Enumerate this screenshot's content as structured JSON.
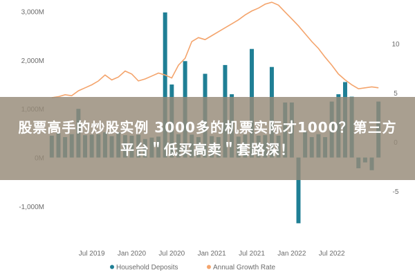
{
  "chart_data": {
    "type": "bar",
    "left_axis": {
      "ticks": [
        "3,000M",
        "2,000M",
        "1,000M",
        "0M",
        "-1,000M"
      ],
      "tick_values": [
        3000,
        2000,
        1000,
        0,
        -1000
      ],
      "ylim": [
        -1600,
        3150
      ]
    },
    "right_axis": {
      "ticks": [
        "10",
        "5",
        "0",
        "-5"
      ],
      "tick_values": [
        10,
        5,
        0,
        -5
      ],
      "ylim": [
        -9.5,
        14
      ]
    },
    "x_ticks": [
      {
        "label": "Jul 2019",
        "index": 6
      },
      {
        "label": "Jan 2020",
        "index": 12
      },
      {
        "label": "Jul 2020",
        "index": 18
      },
      {
        "label": "Jan 2021",
        "index": 24
      },
      {
        "label": "Jul 2021",
        "index": 30
      },
      {
        "label": "Jan 2022",
        "index": 36
      },
      {
        "label": "Jul 2022",
        "index": 42
      }
    ],
    "series": [
      {
        "name": "Household Deposits",
        "type": "bar",
        "axis": "left",
        "color": "#1f7f95",
        "values": [
          450,
          500,
          420,
          480,
          1000,
          460,
          470,
          480,
          520,
          440,
          520,
          460,
          450,
          470,
          380,
          410,
          430,
          2980,
          1500,
          480,
          1980,
          470,
          420,
          1720,
          440,
          420,
          1900,
          1300,
          430,
          470,
          2230,
          450,
          460,
          1860,
          450,
          1130,
          1130,
          -1350,
          540,
          420,
          480,
          420,
          1150,
          1300,
          1550,
          1250,
          -220,
          -100,
          -260,
          1150
        ]
      },
      {
        "name": "Annual Growth Rate",
        "type": "line",
        "axis": "right",
        "color": "#f4a46c",
        "values": [
          4.5,
          4.6,
          4.8,
          4.7,
          5.2,
          5.5,
          5.8,
          6.2,
          6.8,
          6.3,
          6.6,
          7.2,
          6.9,
          6.2,
          6.4,
          6.7,
          7.0,
          6.8,
          6.5,
          7.8,
          8.5,
          10.2,
          10.6,
          10.4,
          10.8,
          11.2,
          11.6,
          12.0,
          12.4,
          12.9,
          13.3,
          13.6,
          14.0,
          14.2,
          13.9,
          13.2,
          12.5,
          11.8,
          11.0,
          10.2,
          9.5,
          8.6,
          7.8,
          6.9,
          6.3,
          5.8,
          5.4,
          5.5,
          5.6,
          5.5
        ]
      }
    ],
    "legend": [
      "Household Deposits",
      "Annual Growth Rate"
    ],
    "legend_position": "bottom"
  },
  "overlay": {
    "headline": "股票高手的炒股实例 3000多的机票实际才1000？第三方平台＂低买高卖＂套路深！"
  }
}
